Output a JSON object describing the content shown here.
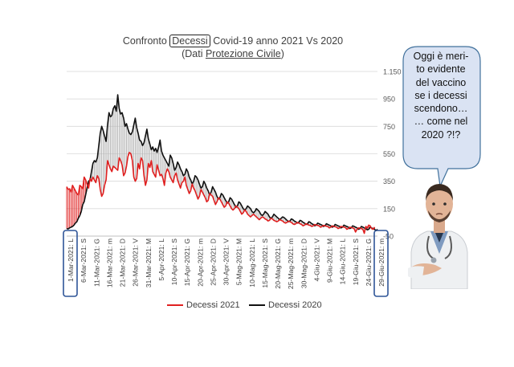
{
  "page": {
    "title_parts": [
      "Confronto ",
      "Decessi",
      " Covid-19 anno 2021 Vs 2020"
    ],
    "subtitle_parts": [
      "(Dati ",
      "Protezione Civile",
      ")"
    ]
  },
  "bubble": {
    "lines": [
      "Oggi è meri-",
      "to evidente",
      "del vaccino",
      "se i decessi",
      "scendono…",
      "… come nel",
      "2020 ?!?"
    ],
    "fill": "#dae3f3",
    "stroke": "#41719c"
  },
  "colors": {
    "series_2021": "#e02020",
    "series_2020": "#111111",
    "highlight_box": "#2f5597",
    "grid": "#d9d9d9"
  },
  "chart_data": {
    "type": "line",
    "title": "Confronto Decessi Covid-19 anno 2021 Vs 2020",
    "subtitle": "(Dati Protezione Civile)",
    "xlabel": "",
    "ylabel": "",
    "ylim": [
      -50,
      1150
    ],
    "yticks": [
      -50,
      150,
      350,
      550,
      750,
      950,
      1150
    ],
    "ytick_labels": [
      "-50",
      "150",
      "350",
      "550",
      "750",
      "950",
      "1.150"
    ],
    "yaxis_position": "right",
    "grid": true,
    "legend": "bottom",
    "x_tick_labels": [
      "1-Mar-2021: L",
      "6-Mar-2021: S",
      "11-Mar-2021: G",
      "16-Mar-2021: m",
      "21-Mar-2021: D",
      "26-Mar-2021: V",
      "31-Mar-2021: M",
      "5-Apr-2021: L",
      "10-Apr-2021: S",
      "15-Apr-2021: G",
      "20-Apr-2021: m",
      "25-Apr-2021: D",
      "30-Apr-2021: V",
      "5-Mag-2021: M",
      "10-Mag-2021: L",
      "15-Mag-2021: S",
      "20-Mag-2021: G",
      "25-Mag-2021: m",
      "30-Mag-2021: D",
      "4-Giu-2021: V",
      "9-Giu-2021: M",
      "14-Giu-2021: L",
      "19-Giu-2021: S",
      "24-Giu-2021: G",
      "29-Giu-2021: m"
    ],
    "highlighted_ticks": [
      "1-Mar-2021: L",
      "29-Giu-2021: m"
    ],
    "series": [
      {
        "name": "Decessi 2021",
        "values": [
          310,
          290,
          295,
          270,
          320,
          300,
          280,
          260,
          250,
          320,
          310,
          295,
          380,
          360,
          330,
          300,
          370,
          350,
          380,
          360,
          340,
          390,
          370,
          290,
          240,
          260,
          320,
          360,
          500,
          470,
          440,
          420,
          460,
          450,
          440,
          430,
          520,
          500,
          470,
          390,
          410,
          460,
          530,
          560,
          550,
          500,
          380,
          350,
          370,
          480,
          440,
          520,
          500,
          390,
          320,
          360,
          480,
          450,
          500,
          420,
          400,
          380,
          470,
          430,
          390,
          400,
          370,
          320,
          410,
          440,
          420,
          380,
          360,
          340,
          390,
          410,
          360,
          330,
          300,
          340,
          350,
          380,
          320,
          290,
          260,
          280,
          330,
          300,
          280,
          250,
          220,
          240,
          290,
          270,
          250,
          230,
          200,
          210,
          260,
          250,
          240,
          210,
          180,
          200,
          230,
          220,
          200,
          180,
          160,
          170,
          200,
          190,
          170,
          150,
          140,
          150,
          170,
          160,
          150,
          130,
          110,
          120,
          140,
          130,
          110,
          100,
          90,
          100,
          110,
          100,
          90,
          80,
          70,
          80,
          90,
          85,
          75,
          70,
          60,
          65,
          80,
          75,
          65,
          60,
          55,
          60,
          70,
          65,
          60,
          50,
          45,
          50,
          60,
          55,
          50,
          40,
          35,
          40,
          50,
          45,
          40,
          35,
          25,
          30,
          40,
          35,
          30,
          28,
          20,
          25,
          35,
          30,
          28,
          25,
          15,
          20,
          28,
          25,
          22,
          20,
          10,
          15,
          25,
          20,
          18,
          15,
          5,
          10,
          20,
          18,
          15,
          12,
          0,
          5,
          15,
          12,
          10,
          5,
          -20,
          0,
          10,
          8,
          5,
          0,
          -30,
          20,
          10,
          30,
          25,
          5,
          0,
          15
        ]
      },
      {
        "name": "Decessi 2020",
        "values": [
          5,
          2,
          10,
          15,
          20,
          30,
          45,
          55,
          80,
          100,
          130,
          180,
          200,
          250,
          300,
          350,
          360,
          420,
          480,
          500,
          490,
          520,
          610,
          700,
          750,
          720,
          680,
          640,
          760,
          850,
          820,
          830,
          880,
          900,
          860,
          980,
          880,
          840,
          850,
          810,
          750,
          770,
          730,
          700,
          690,
          710,
          760,
          810,
          740,
          700,
          650,
          640,
          610,
          630,
          680,
          730,
          660,
          620,
          580,
          600,
          570,
          590,
          560,
          600,
          650,
          570,
          540,
          520,
          500,
          480,
          460,
          540,
          520,
          480,
          430,
          450,
          490,
          470,
          440,
          420,
          390,
          400,
          440,
          420,
          380,
          360,
          330,
          350,
          390,
          380,
          360,
          330,
          300,
          310,
          350,
          330,
          300,
          280,
          250,
          270,
          310,
          290,
          270,
          240,
          220,
          230,
          260,
          250,
          230,
          210,
          190,
          200,
          230,
          220,
          200,
          180,
          160,
          170,
          200,
          190,
          170,
          150,
          140,
          150,
          170,
          160,
          150,
          130,
          120,
          130,
          150,
          140,
          130,
          110,
          100,
          110,
          130,
          120,
          110,
          90,
          80,
          90,
          110,
          100,
          90,
          80,
          70,
          80,
          90,
          85,
          75,
          65,
          55,
          60,
          75,
          70,
          60,
          55,
          45,
          50,
          65,
          60,
          50,
          45,
          35,
          40,
          55,
          50,
          40,
          35,
          25,
          30,
          45,
          40,
          35,
          30,
          20,
          25,
          40,
          35,
          30,
          25,
          15,
          20,
          35,
          30,
          25,
          20,
          10,
          15,
          30,
          25,
          20,
          15,
          5,
          10,
          25,
          20,
          15,
          10,
          0,
          5,
          20,
          15,
          10,
          5,
          -5,
          0,
          15,
          10,
          5,
          0,
          -10,
          0
        ]
      }
    ]
  }
}
